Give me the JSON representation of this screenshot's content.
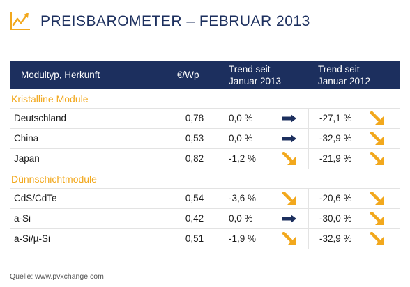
{
  "title": "PREISBAROMETER – FEBRUAR 2013",
  "header": {
    "modultyp": "Modultyp, Herkunft",
    "price": "€/Wp",
    "trend1_line1": "Trend seit",
    "trend1_line2": "Januar 2013",
    "trend2_line1": "Trend seit",
    "trend2_line2": "Januar 2012"
  },
  "sections": [
    {
      "name": "Kristalline Module",
      "rows": [
        {
          "name": "Deutschland",
          "price": "0,78",
          "trend1": "0,0 %",
          "trend1_icon": "right",
          "trend2": "-27,1 %",
          "trend2_icon": "down"
        },
        {
          "name": "China",
          "price": "0,53",
          "trend1": "0,0 %",
          "trend1_icon": "right",
          "trend2": "-32,9 %",
          "trend2_icon": "down"
        },
        {
          "name": "Japan",
          "price": "0,82",
          "trend1": "-1,2 %",
          "trend1_icon": "down",
          "trend2": "-21,9 %",
          "trend2_icon": "down"
        }
      ]
    },
    {
      "name": "Dünnschichtmodule",
      "rows": [
        {
          "name": "CdS/CdTe",
          "price": "0,54",
          "trend1": "-3,6 %",
          "trend1_icon": "down",
          "trend2": "-20,6 %",
          "trend2_icon": "down"
        },
        {
          "name": "a-Si",
          "price": "0,42",
          "trend1": "0,0 %",
          "trend1_icon": "right",
          "trend2": "-30,0 %",
          "trend2_icon": "down"
        },
        {
          "name": "a-Si/µ-Si",
          "price": "0,51",
          "trend1": "-1,9 %",
          "trend1_icon": "down",
          "trend2": "-32,9 %",
          "trend2_icon": "down"
        }
      ]
    }
  ],
  "footer": "Quelle: www.pvxchange.com",
  "colors": {
    "navy": "#1c2f5e",
    "orange": "#f2a81d"
  }
}
